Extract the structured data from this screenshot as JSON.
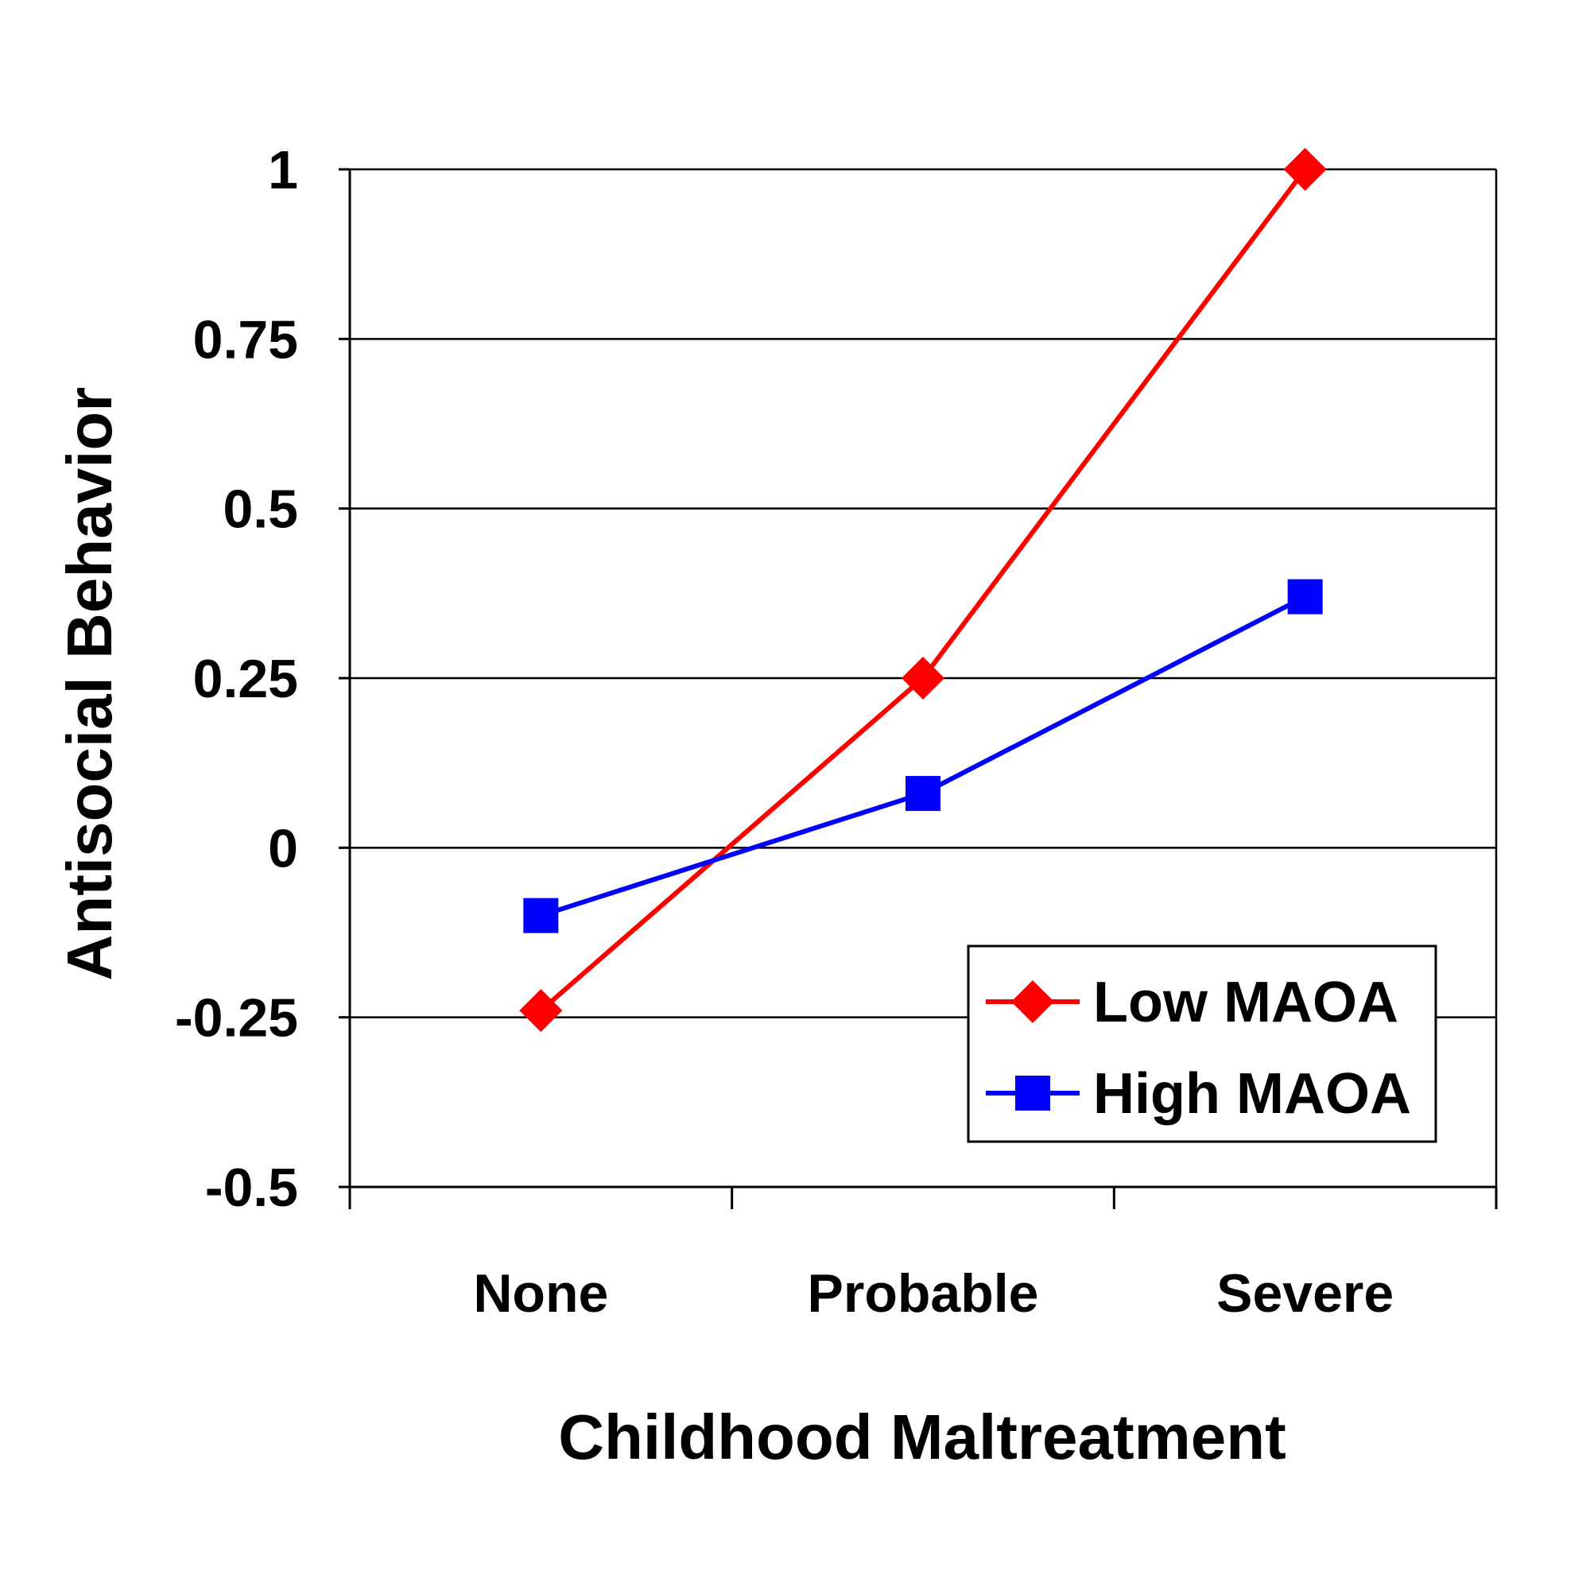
{
  "chart_data": {
    "type": "line",
    "title": "",
    "xlabel": "Childhood Maltreatment",
    "ylabel": "Antisocial Behavior",
    "categories": [
      "None",
      "Probable",
      "Severe"
    ],
    "ylim": [
      -0.5,
      1
    ],
    "yticks": [
      -0.5,
      -0.25,
      0,
      0.25,
      0.5,
      0.75,
      1
    ],
    "ytick_labels": [
      "-0.5",
      "-0.25",
      "0",
      "0.25",
      "0.5",
      "0.75",
      "1"
    ],
    "grid": true,
    "legend_position": "bottom-right",
    "series": [
      {
        "name": "Low MAOA",
        "values": [
          -0.24,
          0.25,
          1.0
        ],
        "color": "#ff0000",
        "marker": "diamond"
      },
      {
        "name": "High MAOA",
        "values": [
          -0.1,
          0.08,
          0.37
        ],
        "color": "#0000ff",
        "marker": "square"
      }
    ]
  }
}
